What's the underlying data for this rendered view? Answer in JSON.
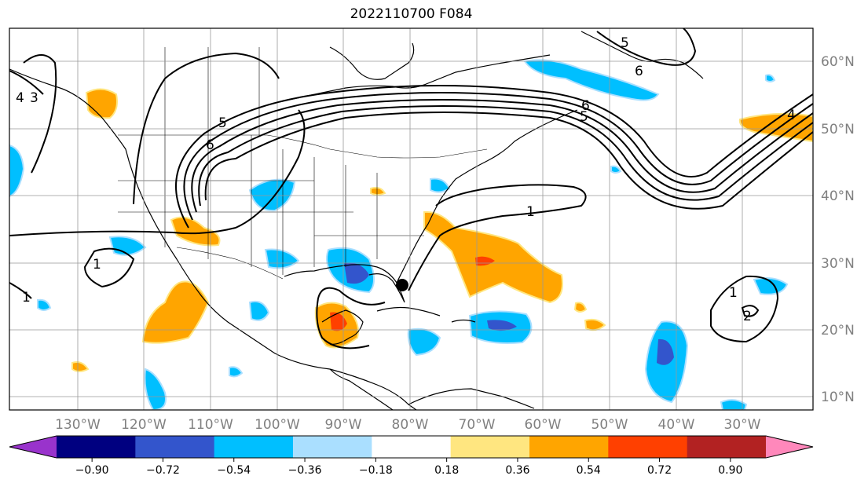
{
  "title": "2022110700 F084",
  "map": {
    "lon_labels": [
      "130°W",
      "120°W",
      "110°W",
      "100°W",
      "90°W",
      "80°W",
      "70°W",
      "60°W",
      "50°W",
      "40°W",
      "30°W"
    ],
    "lat_labels": [
      "60°N",
      "50°N",
      "40°N",
      "30°N",
      "20°N",
      "10°N"
    ],
    "contour_labels": [
      "6",
      "5",
      "6",
      "5",
      "4",
      "3",
      "4",
      "6",
      "5",
      "1",
      "1",
      "1",
      "1",
      "2"
    ],
    "marker": "storm-center-dot"
  },
  "colorbar": {
    "ticks": [
      "−0.90",
      "−0.72",
      "−0.54",
      "−0.36",
      "−0.18",
      "0.18",
      "0.36",
      "0.54",
      "0.72",
      "0.90"
    ],
    "colors": {
      "low_extend": "#9933cc",
      "bins": [
        "#9933cc",
        "#000080",
        "#3355cc",
        "#00bfff",
        "#aadfff",
        "#ffffff",
        "#ffe680",
        "#ffa500",
        "#ff4000",
        "#b22222",
        "#ff88bb"
      ],
      "high_extend": "#ff88bb"
    }
  }
}
